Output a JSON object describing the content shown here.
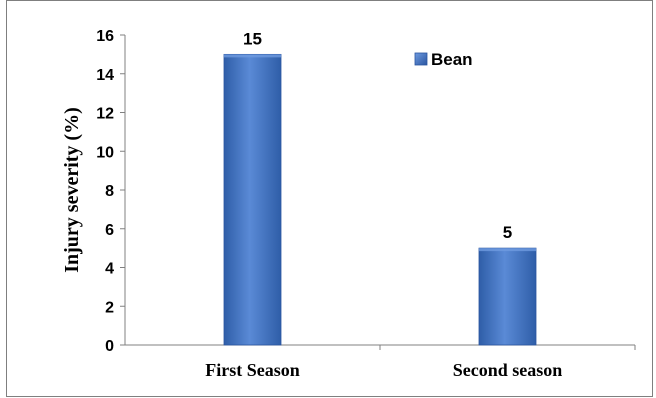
{
  "chart_data": {
    "type": "bar",
    "categories": [
      "First Season",
      "Second season"
    ],
    "series": [
      {
        "name": "Bean",
        "values": [
          15,
          5
        ]
      }
    ],
    "data_labels": [
      "15",
      "5"
    ],
    "title": "",
    "xlabel": "",
    "ylabel": "Injury severity (%)",
    "ylim": [
      0,
      16
    ],
    "yticks": [
      "0",
      "2",
      "4",
      "6",
      "8",
      "10",
      "12",
      "14",
      "16"
    ],
    "grid": false,
    "legend": "top-right",
    "colors": {
      "bar": "#3f72c4",
      "bar_light": "#6f9be0",
      "bar_dark": "#2a55a0",
      "axis": "#808080",
      "border": "#7f7f7f"
    }
  }
}
